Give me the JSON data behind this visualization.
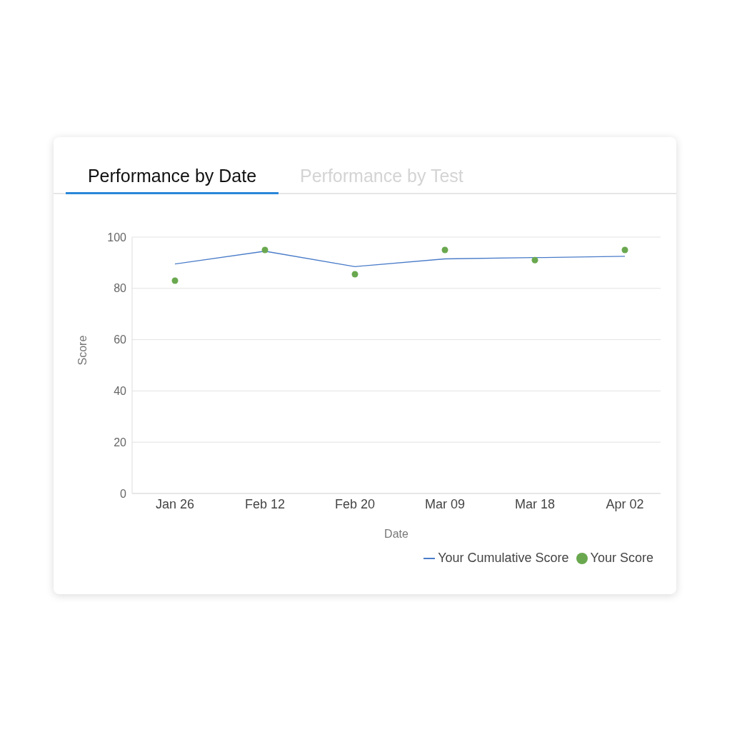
{
  "chart_data": {
    "type": "line",
    "title": "Performance by Date",
    "subtitle": "Performance by Test",
    "xlabel": "Date",
    "ylabel": "Score",
    "categories": [
      "Jan 26",
      "Feb 12",
      "Feb 20",
      "Mar 09",
      "Mar 18",
      "Apr 02"
    ],
    "series": [
      {
        "name": "Your Score",
        "type": "scatter",
        "color": "#6aa84f",
        "marker": "circle",
        "values": [
          83,
          95,
          85.5,
          95,
          91,
          95
        ]
      },
      {
        "name": "Your Cumulative Score",
        "color": "#4a7cc9",
        "marker": "none",
        "line_style": "solid",
        "values": [
          89.5,
          94.5,
          88.5,
          91.5,
          92,
          92.5
        ]
      }
    ],
    "ylim": [
      0,
      100
    ],
    "yticks": [
      0,
      20,
      40,
      60,
      80,
      100
    ],
    "grid": "y",
    "legend": "bottom right"
  }
}
